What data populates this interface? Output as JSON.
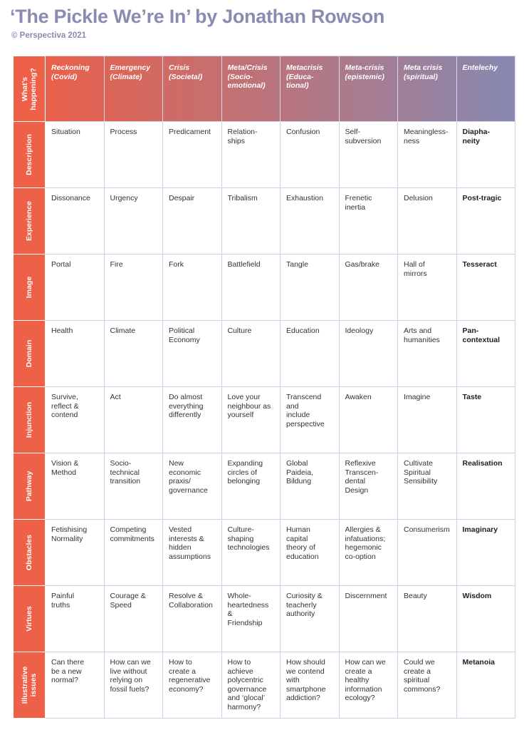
{
  "title": "‘The Pickle We’re In’ by Jonathan Rowson",
  "subtitle": "© Perspectiva 2021",
  "colors": {
    "title": "#8a8bb1",
    "row_label_bg": "#ee6148",
    "header_gradient_start": "#e9604a",
    "header_gradient_end": "#8789b1",
    "grid": "#cfd0e6"
  },
  "table": {
    "corner_label": "What’s\nhappening?",
    "columns": [
      "Reckoning\n(Covid)",
      "Emergency\n(Climate)",
      "Crisis\n(Societal)",
      "Meta/Crisis\n(Socio-\nemotional)",
      "Metacrisis\n(Educa-\ntional)",
      "Meta-crisis\n(epistemic)",
      "Meta crisis\n(spiritual)",
      "Entelechy"
    ],
    "rows": [
      {
        "label": "Description",
        "cells": [
          "Situation",
          "Process",
          "Predicament",
          "Relation-\nships",
          "Confusion",
          "Self-\nsubversion",
          "Meaningless-\nness",
          "Diapha-\nneity"
        ]
      },
      {
        "label": "Experience",
        "cells": [
          "Dissonance",
          "Urgency",
          "Despair",
          "Tribalism",
          "Exhaustion",
          "Frenetic\ninertia",
          "Delusion",
          "Post-tragic"
        ]
      },
      {
        "label": "Image",
        "cells": [
          "Portal",
          "Fire",
          "Fork",
          "Battlefield",
          "Tangle",
          "Gas/brake",
          "Hall of\nmirrors",
          "Tesseract"
        ]
      },
      {
        "label": "Domain",
        "cells": [
          "Health",
          "Climate",
          "Political\nEconomy",
          "Culture",
          "Education",
          "Ideology",
          "Arts and\nhumanities",
          "Pan-\ncontextual"
        ]
      },
      {
        "label": "Injunction",
        "cells": [
          "Survive,\nreflect &\ncontend",
          "Act",
          "Do almost\neverything\ndifferently",
          "Love your\nneighbour as\nyourself",
          "Transcend\nand\ninclude\nperspective",
          "Awaken",
          "Imagine",
          "Taste"
        ]
      },
      {
        "label": "Pathway",
        "cells": [
          "Vision &\nMethod",
          "Socio-\ntechnical\ntransition",
          "New\neconomic\npraxis/\ngovernance",
          "Expanding\ncircles of\nbelonging",
          "Global\nPaideia,\nBildung",
          "Reflexive\nTranscen-\ndental\nDesign",
          "Cultivate\nSpiritual\nSensibility",
          "Realisation"
        ]
      },
      {
        "label": "Obstacles",
        "cells": [
          "Fetishising\nNormality",
          "Competing\ncommitments",
          "Vested\ninterests &\nhidden\nassumptions",
          "Culture-\nshaping\ntechnologies",
          "Human\ncapital\ntheory of\neducation",
          "Allergies &\ninfatuations;\nhegemonic\nco-option",
          "Consumerism",
          "Imaginary"
        ]
      },
      {
        "label": "Virtues",
        "cells": [
          "Painful\ntruths",
          "Courage &\nSpeed",
          "Resolve &\nCollaboration",
          "Whole-\nheartedness\n&\nFriendship",
          "Curiosity &\nteacherly\nauthority",
          "Discernment",
          "Beauty",
          "Wisdom"
        ]
      },
      {
        "label": "Illustrative\nissues",
        "cells": [
          "Can there\nbe a new\nnormal?",
          "How can we\nlive without\nrelying on\nfossil fuels?",
          "How to\ncreate a\nregenerative\neconomy?",
          "How to\nachieve\npolycentric\ngovernance\nand ‘glocal’\nharmony?",
          "How should\nwe contend\nwith\nsmartphone\naddiction?",
          "How can we\ncreate a\nhealthy\ninformation\necology?",
          "Could we\ncreate a\nspiritual\ncommons?",
          "Metanoia"
        ]
      }
    ]
  }
}
